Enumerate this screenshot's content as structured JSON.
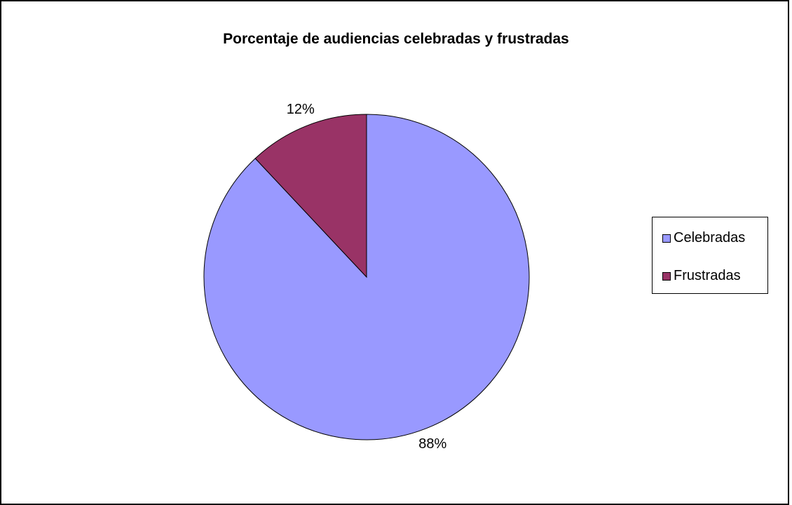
{
  "chart_data": {
    "type": "pie",
    "title": "Porcentaje de audiencias celebradas y frustradas",
    "categories": [
      "Celebradas",
      "Frustradas"
    ],
    "values": [
      88,
      12
    ],
    "data_labels": [
      "88%",
      "12%"
    ],
    "colors": [
      "#9999FF",
      "#993366"
    ],
    "legend_position": "right"
  }
}
